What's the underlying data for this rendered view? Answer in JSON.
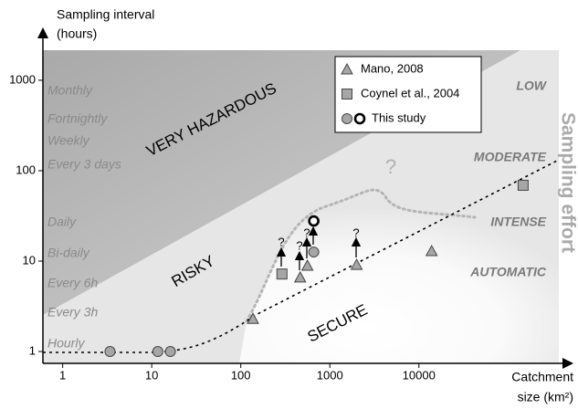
{
  "chart_data": {
    "type": "scatter",
    "y_label": [
      "Sampling interval",
      "(hours)"
    ],
    "x_label": [
      "Catchment",
      "size (km²)"
    ],
    "xscale": "log",
    "yscale": "log",
    "xlim": [
      0.6,
      400000
    ],
    "ylim": [
      0.74,
      2150
    ],
    "xticks": [
      1,
      10,
      100,
      1000,
      10000
    ],
    "yticks": [
      1,
      10,
      100,
      1000
    ],
    "legend": "upper right",
    "series": [
      {
        "name": "Mano, 2008",
        "marker": "triangle",
        "color": "#a6a6a6",
        "x": [
          137,
          465,
          560,
          2000,
          13900
        ],
        "values": [
          2.3,
          6.6,
          8.9,
          9.1,
          12.9
        ]
      },
      {
        "name": "Coynel et al., 2004",
        "marker": "square",
        "color": "#a6a6a6",
        "x": [
          290,
          148000
        ],
        "values": [
          7.2,
          69
        ]
      },
      {
        "name": "This study",
        "marker": "circle",
        "color": "#a6a6a6",
        "x": [
          3.4,
          11.7,
          16.2,
          660,
          660
        ],
        "values": [
          1,
          1,
          1,
          12.6,
          27.8
        ],
        "open": [
          false,
          false,
          false,
          false,
          true
        ]
      }
    ],
    "frequency_labels": [
      "Monthly",
      "Fortnightly",
      "Weekly",
      "Every 3 days",
      "Daily",
      "Bi-daily",
      "Every 6h",
      "Every 3h",
      "Hourly"
    ],
    "regions": [
      "VERY HAZARDOUS",
      "RISKY",
      "SECURE"
    ],
    "effort_levels": [
      "LOW",
      "MODERATE",
      "INTENSE",
      "AUTOMATIC"
    ],
    "effort_title": "Sampling effort",
    "annotations": [
      "?",
      "?",
      "?",
      "?",
      "?"
    ]
  }
}
